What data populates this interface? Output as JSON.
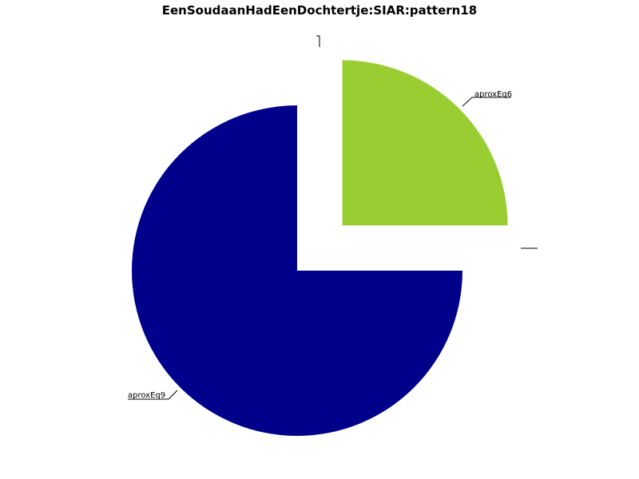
{
  "chart_data": {
    "type": "pie",
    "title": "EenSoudaanHadEenDochtertje:SIAR:pattern18",
    "slices": [
      {
        "label": "aproxEq6",
        "value": 25,
        "color": "#9acd32",
        "exploded": true
      },
      {
        "label": "aproxEq9",
        "value": 75,
        "color": "#00008b",
        "exploded": false
      }
    ],
    "start_angle": "12 o'clock",
    "direction": "clockwise",
    "legend": "none"
  }
}
